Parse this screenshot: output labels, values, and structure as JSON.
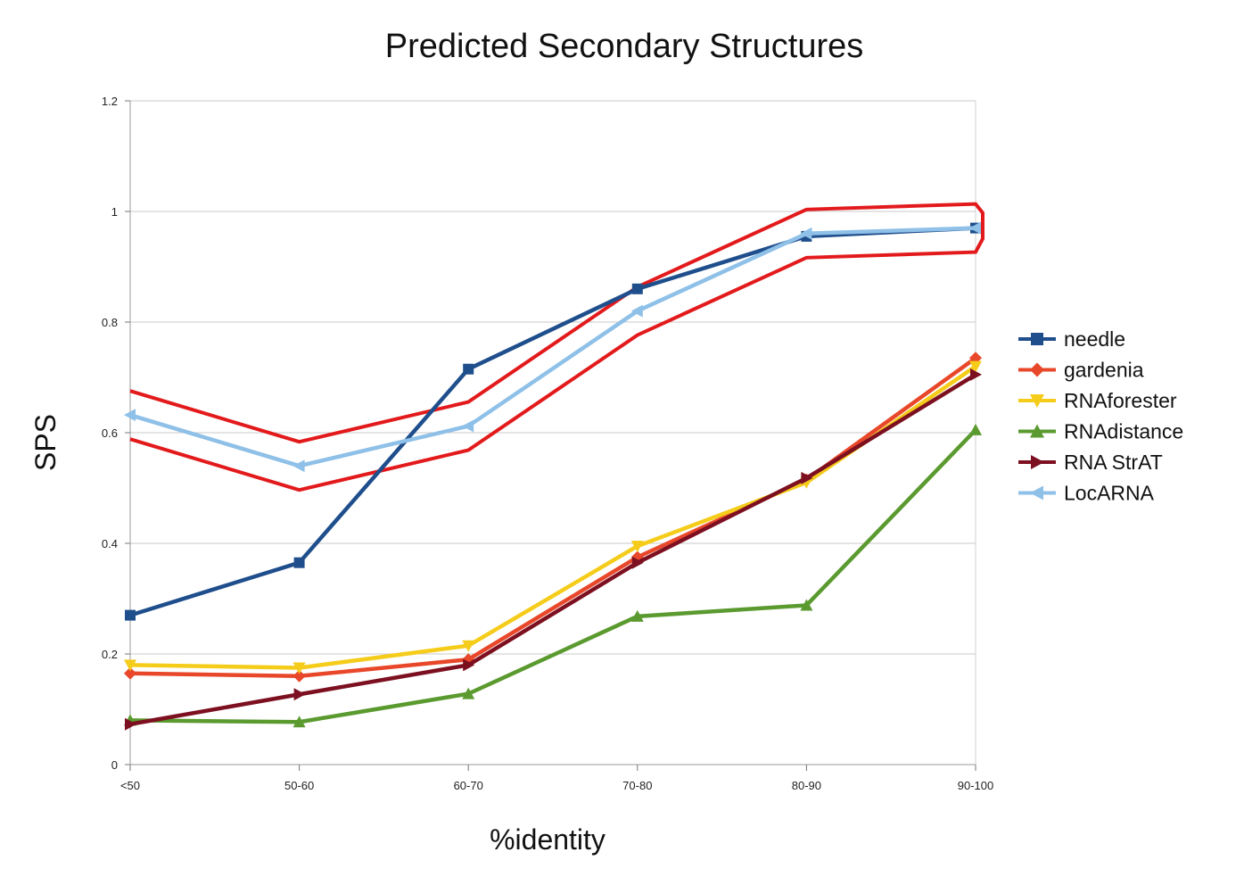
{
  "chart_data": {
    "type": "line",
    "title": "Predicted Secondary Structures",
    "xlabel": "%identity",
    "ylabel": "SPS",
    "categories": [
      "<50",
      "50-60",
      "60-70",
      "70-80",
      "80-90",
      "90-100"
    ],
    "ylim": [
      0,
      1.2
    ],
    "yticks": [
      "0",
      "0.2",
      "0.4",
      "0.6",
      "0.8",
      "1",
      "1.2"
    ],
    "grid": true,
    "legend_position": "right",
    "series": [
      {
        "name": "needle",
        "color": "#1f4e8c",
        "marker": "square",
        "values": [
          0.27,
          0.365,
          0.715,
          0.86,
          0.955,
          0.97
        ]
      },
      {
        "name": "gardenia",
        "color": "#e8472a",
        "marker": "diamond",
        "values": [
          0.165,
          0.16,
          0.19,
          0.375,
          0.515,
          0.735
        ]
      },
      {
        "name": "RNAforester",
        "color": "#f5cc1a",
        "marker": "triangle-down",
        "values": [
          0.18,
          0.175,
          0.215,
          0.395,
          0.51,
          0.72
        ]
      },
      {
        "name": "RNAdistance",
        "color": "#5a9a2f",
        "marker": "triangle-up",
        "values": [
          0.08,
          0.077,
          0.128,
          0.268,
          0.288,
          0.605
        ]
      },
      {
        "name": "RNA StrAT",
        "color": "#7d1020",
        "marker": "triangle-right",
        "values": [
          0.073,
          0.127,
          0.18,
          0.365,
          0.518,
          0.705
        ]
      },
      {
        "name": "LocARNA",
        "color": "#8ec0e8",
        "marker": "triangle-left",
        "values": [
          0.632,
          0.54,
          0.612,
          0.82,
          0.96,
          0.97
        ]
      }
    ],
    "annotation": {
      "type": "highlight-outline",
      "color": "#e31a1c",
      "around_series": "LocARNA"
    }
  }
}
